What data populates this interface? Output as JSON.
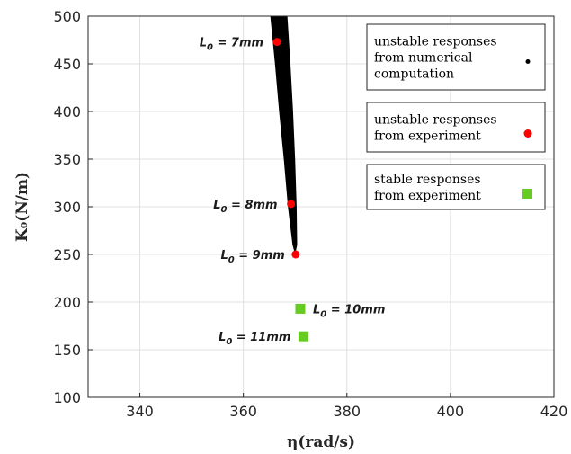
{
  "chart_data": {
    "type": "scatter",
    "title": "",
    "xlabel": "η(rad/s)",
    "ylabel": "K₀(N/m)",
    "xlim": [
      330,
      420
    ],
    "ylim": [
      100,
      500
    ],
    "xticks": [
      "340",
      "360",
      "380",
      "400",
      "420"
    ],
    "yticks": [
      "100",
      "150",
      "200",
      "250",
      "300",
      "350",
      "400",
      "450",
      "500"
    ],
    "grid": true,
    "legend_position": "right",
    "series": [
      {
        "name": "unstable responses from numerical computation",
        "legend_lines": [
          "unstable responses",
          "from numerical",
          "computation"
        ],
        "marker": "dot",
        "color": "#000000",
        "region": {
          "left": [
            [
              365.2,
              500
            ],
            [
              366.1,
              450
            ],
            [
              366.9,
              400
            ],
            [
              367.8,
              350
            ],
            [
              368.6,
              300
            ],
            [
              369.5,
              260
            ],
            [
              370.0,
              250
            ]
          ],
          "right": [
            [
              368.5,
              500
            ],
            [
              369.1,
              450
            ],
            [
              369.6,
              400
            ],
            [
              370.0,
              350
            ],
            [
              370.3,
              300
            ],
            [
              370.4,
              260
            ],
            [
              370.0,
              250
            ]
          ]
        }
      },
      {
        "name": "unstable responses from experiment",
        "legend_lines": [
          "unstable responses",
          "from experiment"
        ],
        "marker": "circle",
        "color": "#ff0000",
        "points": [
          {
            "x": 366.5,
            "y": 473,
            "label": "L0 = 7mm"
          },
          {
            "x": 369.2,
            "y": 303,
            "label": "L0 = 8mm"
          },
          {
            "x": 370.1,
            "y": 250,
            "label": "L0 = 9mm"
          }
        ]
      },
      {
        "name": "stable responses from experiment",
        "legend_lines": [
          "stable responses",
          "from experiment"
        ],
        "marker": "square",
        "color": "#66cc22",
        "points": [
          {
            "x": 371.0,
            "y": 193,
            "label": "L0 = 10mm"
          },
          {
            "x": 371.6,
            "y": 164,
            "label": "L0 = 11mm"
          }
        ]
      }
    ]
  }
}
